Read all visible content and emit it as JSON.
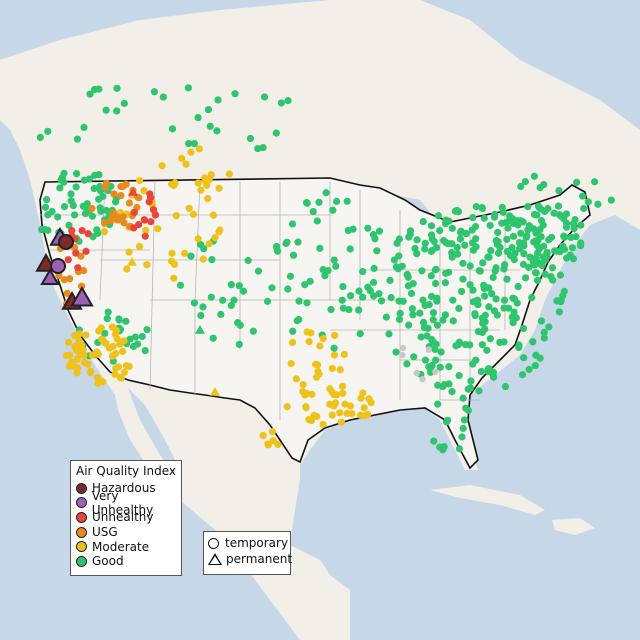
{
  "legend": {
    "title": "Air Quality Index",
    "categories": [
      {
        "label": "Hazardous",
        "color": "#7e2a2a"
      },
      {
        "label": "Very Unhealthy",
        "color": "#9b5fb5"
      },
      {
        "label": "Unhealthy",
        "color": "#e8463a"
      },
      {
        "label": "USG",
        "color": "#e88a1e"
      },
      {
        "label": "Moderate",
        "color": "#eec21a"
      },
      {
        "label": "Good",
        "color": "#2fc46e"
      }
    ],
    "monitor_types": [
      {
        "label": "temporary",
        "shape": "circle"
      },
      {
        "label": "permanent",
        "shape": "triangle"
      }
    ]
  },
  "colors": {
    "land": "#f2efe9",
    "water": "#c6d7e8",
    "us_land": "#f7f5f1",
    "border": "#111111",
    "state_line": "#b5b5b5",
    "missing": "#c8c8c8"
  }
}
